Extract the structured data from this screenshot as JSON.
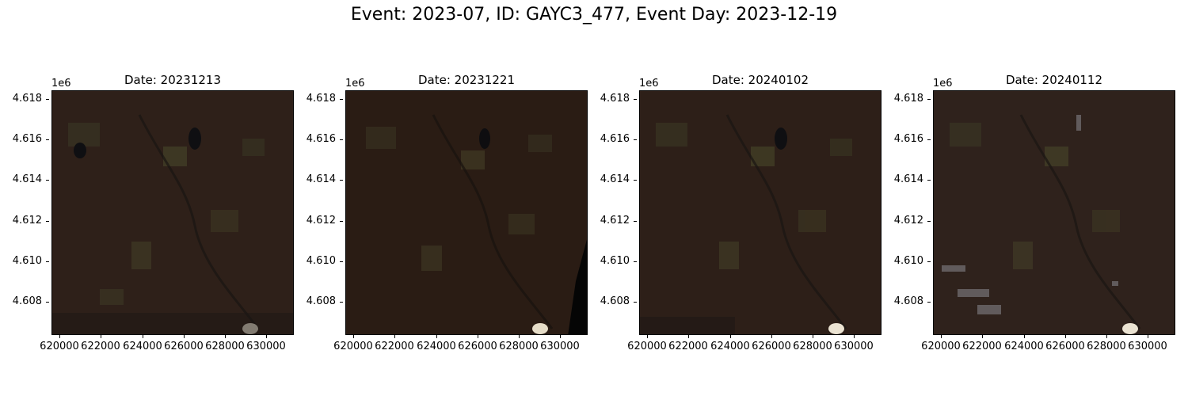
{
  "figure": {
    "suptitle": "Event: 2023-07, ID: GAYC3_477, Event Day: 2023-12-19"
  },
  "axis": {
    "y_offset": "1e6",
    "y_ticks": [
      "4.618",
      "4.616",
      "4.614",
      "4.612",
      "4.610",
      "4.608"
    ],
    "x_ticks": [
      "620000",
      "622000",
      "624000",
      "626000",
      "628000",
      "630000"
    ]
  },
  "panels": [
    {
      "title": "Date: 20231213",
      "tone": "#2e2019"
    },
    {
      "title": "Date: 20231221",
      "tone": "#2a1c14"
    },
    {
      "title": "Date: 20240102",
      "tone": "#2d1f18"
    },
    {
      "title": "Date: 20240112",
      "tone": "#2f221c"
    }
  ]
}
